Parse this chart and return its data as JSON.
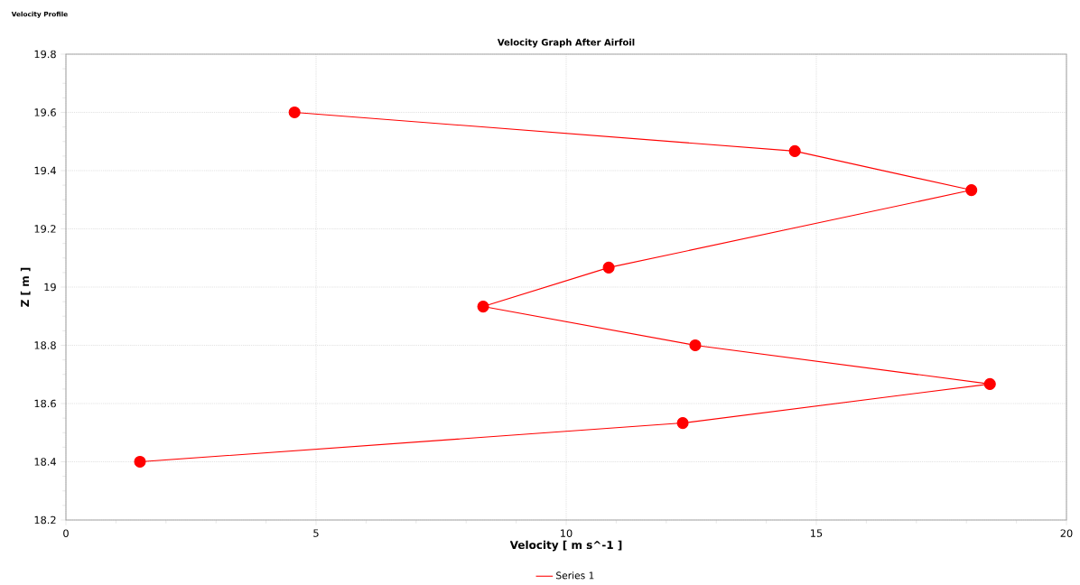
{
  "chart_data": {
    "type": "line",
    "title": "Velocity Graph After Airfoil",
    "annotations": [
      "Velocity Profile"
    ],
    "xlabel": "Velocity [ m s^-1 ]",
    "ylabel": "Z [ m ]",
    "series": [
      {
        "name": "Series 1",
        "color": "#ff0000",
        "x": [
          4.57,
          14.57,
          18.1,
          10.85,
          8.34,
          12.58,
          18.47,
          12.33,
          1.48
        ],
        "values": [
          19.6,
          19.467,
          19.333,
          19.067,
          18.933,
          18.8,
          18.667,
          18.533,
          18.4
        ]
      }
    ],
    "xlim": [
      0,
      20
    ],
    "xticks": [
      0,
      5,
      10,
      15,
      20
    ],
    "ylim": [
      18.2,
      19.8
    ],
    "yticks": [
      18.2,
      18.4,
      18.6,
      18.8,
      19,
      19.2,
      19.4,
      19.6,
      19.8
    ],
    "grid": true,
    "legend": "bottom",
    "marker": "circle",
    "line_style": "solid"
  }
}
